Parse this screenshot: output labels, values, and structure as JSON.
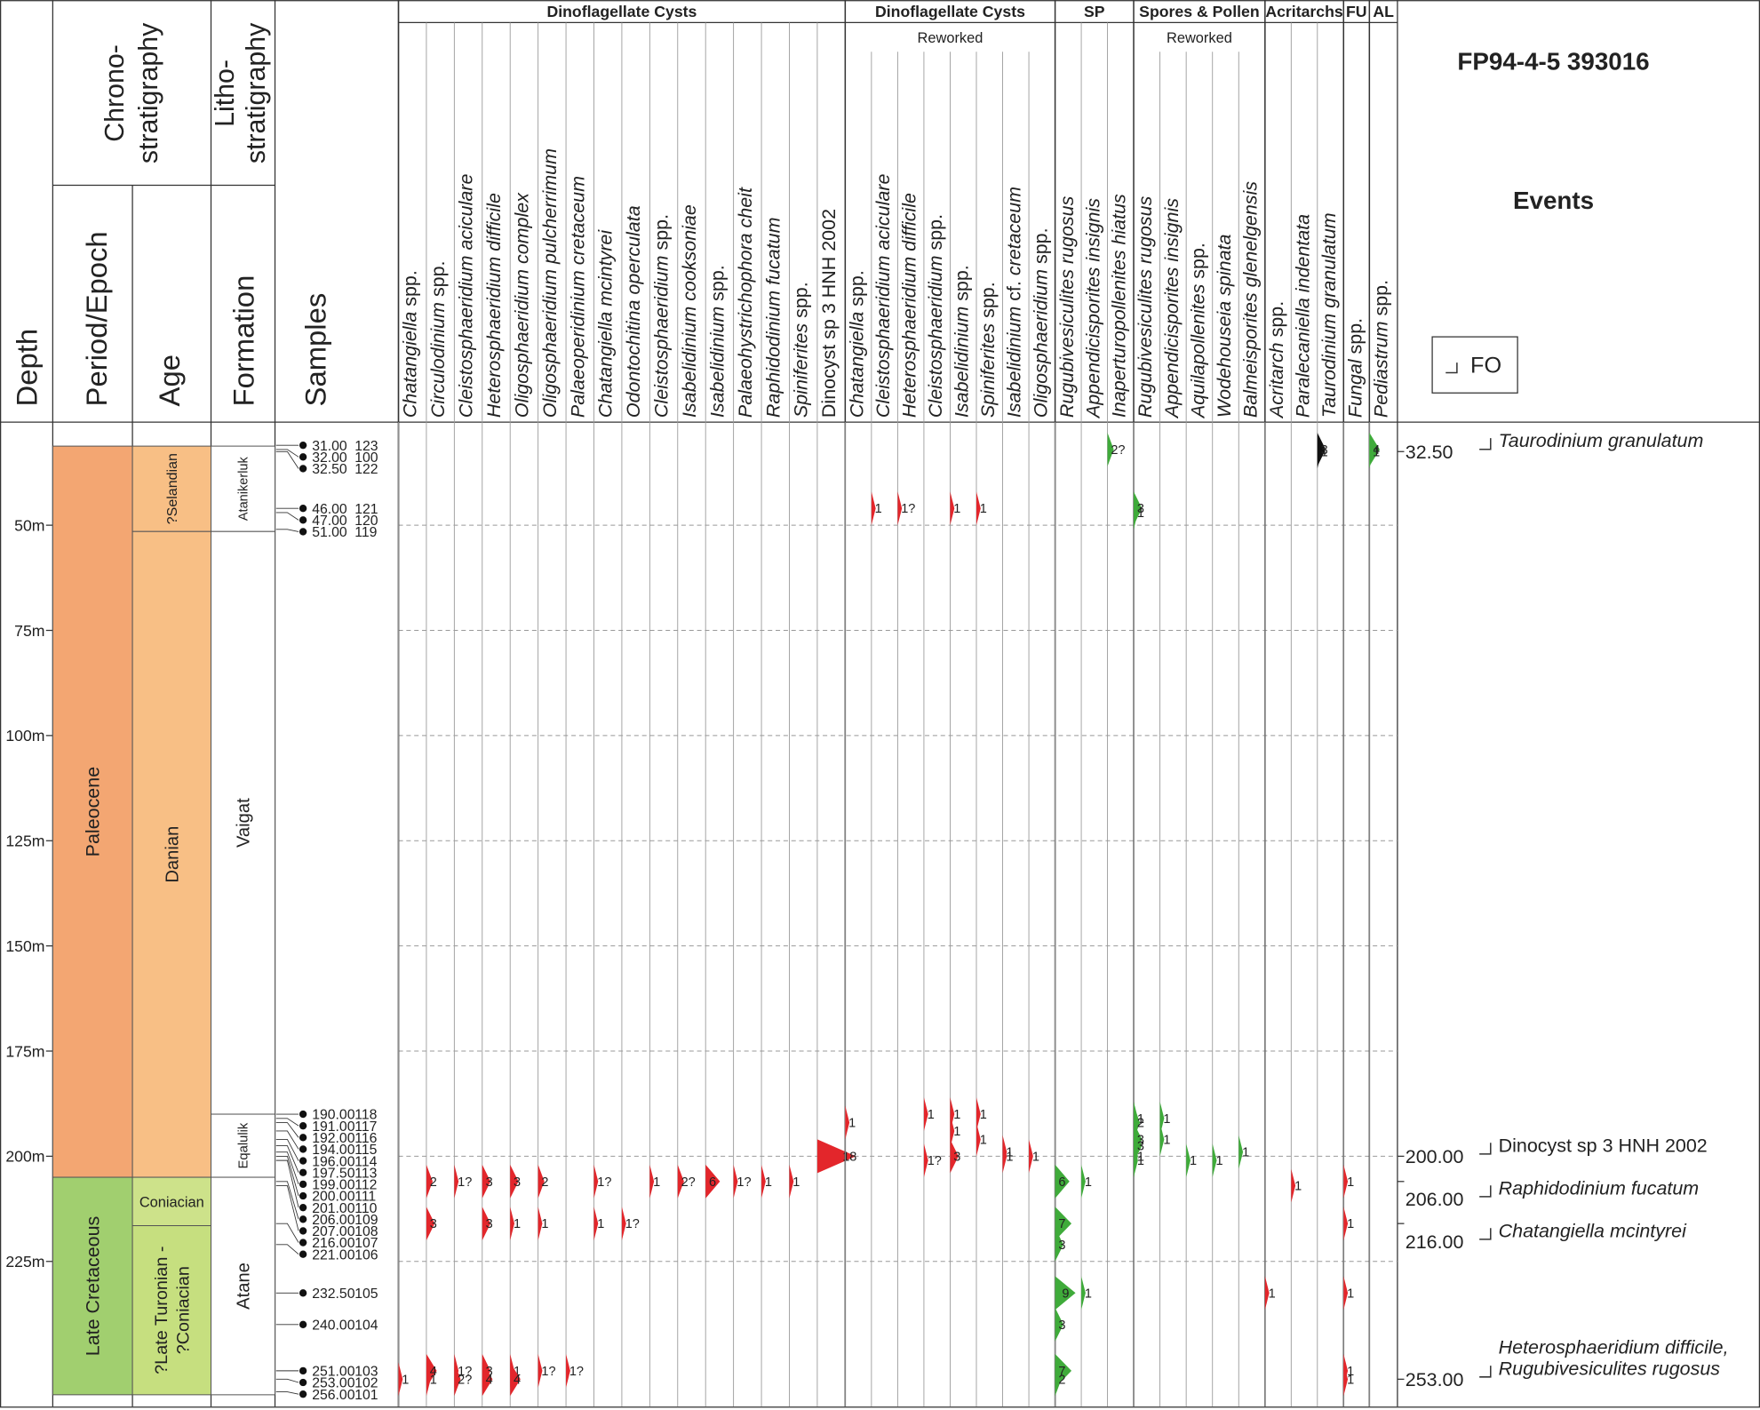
{
  "header": {
    "title": "FP94-4-5 393016",
    "events_title": "Events",
    "legend_fo": "FO"
  },
  "columns": {
    "depth": "Depth",
    "chrono": [
      "Chrono-",
      "stratigraphy"
    ],
    "period": "Period/Epoch",
    "age": "Age",
    "litho": [
      "Litho-",
      "stratigraphy"
    ],
    "formation": "Formation",
    "samples": "Samples"
  },
  "depth_axis": {
    "range": [
      25.5,
      259.5
    ],
    "ticks": [
      {
        "value": 50,
        "label": "50m"
      },
      {
        "value": 75,
        "label": "75m"
      },
      {
        "value": 100,
        "label": "100m"
      },
      {
        "value": 125,
        "label": "125m"
      },
      {
        "value": 150,
        "label": "150m"
      },
      {
        "value": 175,
        "label": "175m"
      },
      {
        "value": 200,
        "label": "200m"
      },
      {
        "value": 225,
        "label": "225m"
      }
    ]
  },
  "periods": [
    {
      "name": "Paleocene",
      "top": 31.2,
      "base": 205,
      "color": "#f3a672"
    },
    {
      "name": "Late Cretaceous",
      "top": 205,
      "base": 256.7,
      "color": "#a1cf6f"
    }
  ],
  "ages": [
    {
      "name": "?Selandian",
      "top": 31.2,
      "base": 51.5,
      "color": "#f8bf85"
    },
    {
      "name": "Danian",
      "top": 51.5,
      "base": 205,
      "color": "#f8bf85"
    },
    {
      "name": "Coniacian",
      "top": 205,
      "base": 216.5,
      "color": "#cde28a"
    },
    {
      "name": [
        "?Late Turonian -",
        "?Coniacian"
      ],
      "top": 216.5,
      "base": 256.7,
      "color": "#c6df7f"
    }
  ],
  "formations": [
    {
      "name": "Atanikerluk",
      "top": 31.2,
      "base": 51.5,
      "color": "#ffffff"
    },
    {
      "name": "Vaigat",
      "top": 51.5,
      "base": 190,
      "color": "#ffffff"
    },
    {
      "name": "Eqalulik",
      "top": 190,
      "base": 205,
      "color": "#ffffff"
    },
    {
      "name": "Atane",
      "top": 205,
      "base": 256.7,
      "color": "#ffffff"
    }
  ],
  "samples": [
    {
      "depth": "31.00",
      "id": "123"
    },
    {
      "depth": "32.00",
      "id": "100"
    },
    {
      "depth": "32.50",
      "id": "122"
    },
    {
      "depth": "46.00",
      "id": "121"
    },
    {
      "depth": "47.00",
      "id": "120"
    },
    {
      "depth": "51.00",
      "id": "119"
    },
    {
      "depth": "190.00",
      "id": "118"
    },
    {
      "depth": "191.00",
      "id": "117"
    },
    {
      "depth": "192.00",
      "id": "116"
    },
    {
      "depth": "194.00",
      "id": "115"
    },
    {
      "depth": "196.00",
      "id": "114"
    },
    {
      "depth": "197.50",
      "id": "113"
    },
    {
      "depth": "199.00",
      "id": "112"
    },
    {
      "depth": "200.00",
      "id": "111"
    },
    {
      "depth": "201.00",
      "id": "110"
    },
    {
      "depth": "206.00",
      "id": "109"
    },
    {
      "depth": "207.00",
      "id": "108"
    },
    {
      "depth": "216.00",
      "id": "107"
    },
    {
      "depth": "221.00",
      "id": "106"
    },
    {
      "depth": "232.50",
      "id": "105"
    },
    {
      "depth": "240.00",
      "id": "104"
    },
    {
      "depth": "251.00",
      "id": "103"
    },
    {
      "depth": "253.00",
      "id": "102"
    },
    {
      "depth": "256.00",
      "id": "101"
    }
  ],
  "groups": [
    {
      "name": "Dinoflagellate Cysts",
      "color": "#e3262b",
      "taxa": [
        {
          "name": "Chatangiella spp.",
          "occurrences": [
            {
              "depth": 253,
              "count": "1"
            }
          ]
        },
        {
          "name": "Circulodinium spp.",
          "occurrences": [
            {
              "depth": 206,
              "count": "2"
            },
            {
              "depth": 216,
              "count": "3"
            },
            {
              "depth": 251,
              "count": "4"
            },
            {
              "depth": 253,
              "count": "1"
            }
          ]
        },
        {
          "name": "Cleistosphaeridium aciculare",
          "occurrences": [
            {
              "depth": 206,
              "count": "1?"
            },
            {
              "depth": 251,
              "count": "1?"
            },
            {
              "depth": 253,
              "count": "2?"
            }
          ]
        },
        {
          "name": "Heterosphaeridium difficile",
          "occurrences": [
            {
              "depth": 206,
              "count": "3"
            },
            {
              "depth": 216,
              "count": "3"
            },
            {
              "depth": 251,
              "count": "3"
            },
            {
              "depth": 253,
              "count": "4"
            }
          ]
        },
        {
          "name": "Oligosphaeridium complex",
          "occurrences": [
            {
              "depth": 206,
              "count": "3"
            },
            {
              "depth": 216,
              "count": "1"
            },
            {
              "depth": 251,
              "count": "1"
            },
            {
              "depth": 253,
              "count": "4"
            }
          ]
        },
        {
          "name": "Oligosphaeridium pulcherrimum",
          "occurrences": [
            {
              "depth": 206,
              "count": "2"
            },
            {
              "depth": 216,
              "count": "1"
            },
            {
              "depth": 251,
              "count": "1?"
            }
          ]
        },
        {
          "name": "Palaeoperidinium cretaceum",
          "occurrences": [
            {
              "depth": 251,
              "count": "1?"
            }
          ]
        },
        {
          "name": "Chatangiella mcintyrei",
          "occurrences": [
            {
              "depth": 206,
              "count": "1?"
            },
            {
              "depth": 216,
              "count": "1"
            }
          ]
        },
        {
          "name": "Odontochitina operculata",
          "occurrences": [
            {
              "depth": 216,
              "count": "1?"
            }
          ]
        },
        {
          "name": "Cleistosphaeridium spp.",
          "occurrences": [
            {
              "depth": 206,
              "count": "1"
            }
          ]
        },
        {
          "name": "Isabelidinium cooksoniae",
          "occurrences": [
            {
              "depth": 206,
              "count": "2?"
            }
          ]
        },
        {
          "name": "Isabelidinium spp.",
          "occurrences": [
            {
              "depth": 206,
              "count": "6"
            }
          ]
        },
        {
          "name": "Palaeohystrichophora cheit",
          "occurrences": [
            {
              "depth": 206,
              "count": "1?"
            }
          ]
        },
        {
          "name": "Raphidodinium fucatum",
          "occurrences": [
            {
              "depth": 206,
              "count": "1"
            }
          ]
        },
        {
          "name": "Spiniferites spp.",
          "occurrences": [
            {
              "depth": 206,
              "count": "1"
            }
          ]
        },
        {
          "name": "Dinocyst sp 3 HNH 2002",
          "italic": false,
          "occurrences": [
            {
              "depth": 200,
              "count": "18"
            }
          ]
        }
      ]
    },
    {
      "name": "Dinoflagellate Cysts",
      "subtitle": "Reworked",
      "color": "#e3262b",
      "taxa": [
        {
          "name": "Chatangiella spp.",
          "occurrences": [
            {
              "depth": 192,
              "count": "1"
            }
          ]
        },
        {
          "name": "Cleistosphaeridium aciculare",
          "occurrences": [
            {
              "depth": 46,
              "count": "1"
            }
          ]
        },
        {
          "name": "Heterosphaeridium  difficile",
          "occurrences": [
            {
              "depth": 46,
              "count": "1?"
            }
          ]
        },
        {
          "name": "Cleistosphaeridium spp.",
          "occurrences": [
            {
              "depth": 190,
              "count": "1"
            },
            {
              "depth": 201,
              "count": "1?"
            }
          ]
        },
        {
          "name": "Isabelidinium spp.",
          "occurrences": [
            {
              "depth": 46,
              "count": "1"
            },
            {
              "depth": 190,
              "count": "1"
            },
            {
              "depth": 194,
              "count": "1"
            },
            {
              "depth": 200,
              "count": "3"
            }
          ]
        },
        {
          "name": "Spiniferites spp.",
          "occurrences": [
            {
              "depth": 46,
              "count": "1"
            },
            {
              "depth": 190,
              "count": "1"
            },
            {
              "depth": 196,
              "count": "1"
            }
          ]
        },
        {
          "name": "Isabelidinium cf. cretaceum",
          "occurrences": [
            {
              "depth": 199,
              "count": "1"
            },
            {
              "depth": 200,
              "count": "1"
            }
          ]
        },
        {
          "name": "Oligosphaeridium spp.",
          "occurrences": [
            {
              "depth": 200,
              "count": "1"
            }
          ]
        }
      ]
    },
    {
      "name": "SP",
      "color": "#3fab3a",
      "taxa": [
        {
          "name": "Rugubivesiculites rugosus",
          "occurrences": [
            {
              "depth": 206,
              "count": "6"
            },
            {
              "depth": 216,
              "count": "7"
            },
            {
              "depth": 221,
              "count": "3"
            },
            {
              "depth": 232.5,
              "count": "9"
            },
            {
              "depth": 240,
              "count": "3"
            },
            {
              "depth": 251,
              "count": "7"
            },
            {
              "depth": 253,
              "count": "2"
            }
          ]
        },
        {
          "name": "Appendicisporites insignis",
          "occurrences": [
            {
              "depth": 206,
              "count": "1"
            },
            {
              "depth": 232.5,
              "count": "1"
            }
          ]
        },
        {
          "name": "Inaperturopollenites hiatus",
          "occurrences": [
            {
              "depth": 32,
              "count": "2?"
            }
          ]
        }
      ]
    },
    {
      "name": "Spores & Pollen",
      "subtitle": "Reworked",
      "color": "#3fab3a",
      "taxa": [
        {
          "name": "Rugubivesiculites rugosus",
          "occurrences": [
            {
              "depth": 46,
              "count": "3"
            },
            {
              "depth": 47,
              "count": "1"
            },
            {
              "depth": 191,
              "count": "1"
            },
            {
              "depth": 192,
              "count": "2"
            },
            {
              "depth": 196,
              "count": "3"
            },
            {
              "depth": 197.5,
              "count": "3"
            },
            {
              "depth": 200,
              "count": "1"
            },
            {
              "depth": 201,
              "count": "1"
            }
          ]
        },
        {
          "name": "Appendicisporites insignis",
          "occurrences": [
            {
              "depth": 191,
              "count": "1"
            },
            {
              "depth": 196,
              "count": "1"
            }
          ]
        },
        {
          "name": "Aquilapollenites spp.",
          "occurrences": [
            {
              "depth": 201,
              "count": "1"
            }
          ]
        },
        {
          "name": "Wodehouseia spinata",
          "occurrences": [
            {
              "depth": 201,
              "count": "1"
            }
          ]
        },
        {
          "name": "Balmeisporites glenelgensis",
          "occurrences": [
            {
              "depth": 199,
              "count": "1"
            }
          ]
        }
      ]
    },
    {
      "name": "Acritarchs",
      "color": "#e3262b",
      "taxa": [
        {
          "name": "Acritarch spp.",
          "occurrences": [
            {
              "depth": 232.5,
              "count": "1"
            }
          ]
        },
        {
          "name": "Paralecaniella indentata",
          "occurrences": [
            {
              "depth": 207,
              "count": "1"
            }
          ]
        },
        {
          "name": "Taurodinium granulatum",
          "color": "#111111",
          "occurrences": [
            {
              "depth": 32,
              "count": "3"
            },
            {
              "depth": 32.5,
              "count": "1"
            }
          ]
        }
      ]
    },
    {
      "name": "FU",
      "color": "#e3262b",
      "taxa": [
        {
          "name": "Fungal spp.",
          "occurrences": [
            {
              "depth": 206,
              "count": "1"
            },
            {
              "depth": 216,
              "count": "1"
            },
            {
              "depth": 232.5,
              "count": "1"
            },
            {
              "depth": 251,
              "count": "1"
            },
            {
              "depth": 253,
              "count": "1"
            }
          ]
        }
      ]
    },
    {
      "name": "AL",
      "color": "#3fab3a",
      "taxa": [
        {
          "name": "Pediastrum spp.",
          "occurrences": [
            {
              "depth": 32,
              "count": "4"
            },
            {
              "depth": 32.5,
              "count": "1"
            }
          ]
        }
      ]
    }
  ],
  "events": [
    {
      "depth": "32.50",
      "taxa": [
        "Taurodinium granulatum"
      ]
    },
    {
      "depth": "200.00",
      "italic": false,
      "taxa": [
        "Dinocyst sp 3 HNH 2002"
      ]
    },
    {
      "depth": "206.00",
      "taxa": [
        "Raphidodinium fucatum"
      ]
    },
    {
      "depth": "216.00",
      "taxa": [
        "Chatangiella mcintyrei"
      ]
    },
    {
      "depth": "253.00",
      "taxa": [
        "Heterosphaeridium difficile,",
        "Rugubivesiculites rugosus"
      ]
    }
  ]
}
